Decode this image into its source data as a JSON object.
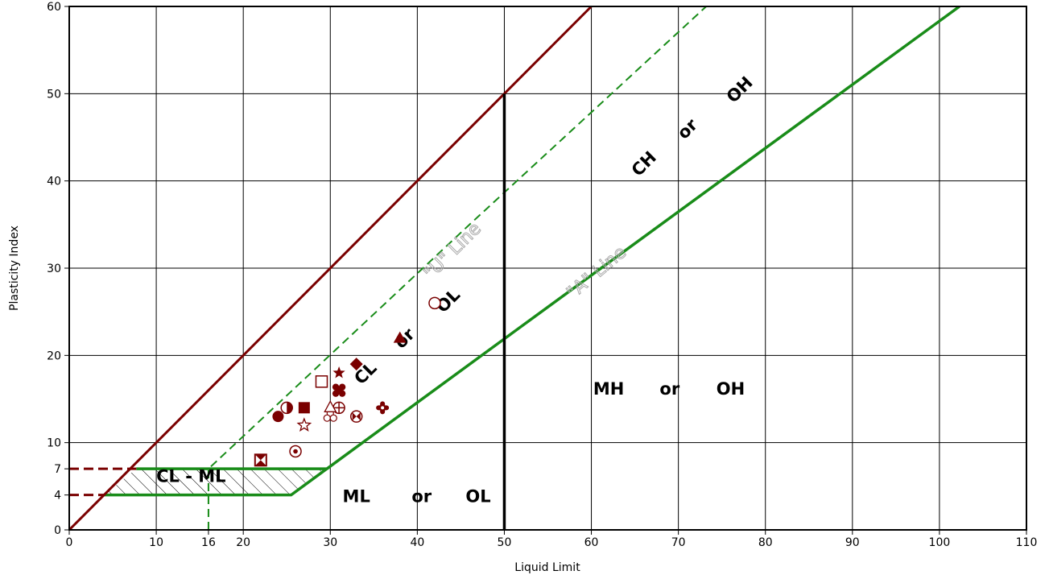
{
  "colors": {
    "u_line": "#7a0000",
    "a_line": "#198c19",
    "marker": "#7a0000",
    "grid": "#000000"
  },
  "chart_data": {
    "type": "scatter",
    "title": "",
    "xlabel": "Liquid Limit",
    "ylabel": "Plasticity Index",
    "xlim": [
      0,
      110
    ],
    "ylim": [
      0,
      60
    ],
    "x_ticks": [
      0,
      10,
      16,
      20,
      30,
      40,
      50,
      60,
      70,
      80,
      90,
      100,
      110
    ],
    "y_ticks": [
      0,
      4,
      7,
      10,
      20,
      30,
      40,
      50,
      60
    ],
    "grid": true,
    "reference_lines": [
      {
        "name": "\"U\" Line",
        "points": [
          [
            0,
            0
          ],
          [
            8,
            7
          ],
          [
            60,
            60
          ]
        ]
      },
      {
        "name": "\"A\" Line",
        "points": [
          [
            4,
            4
          ],
          [
            25.5,
            4
          ],
          [
            29.6,
            7
          ],
          [
            50,
            21.9
          ],
          [
            102.3,
            60
          ]
        ]
      },
      {
        "name": "LL = 50",
        "points": [
          [
            50,
            0
          ],
          [
            50,
            50
          ]
        ]
      }
    ],
    "zones": [
      {
        "label": "CL - ML",
        "x": 14,
        "y": 5.5,
        "rotate": 0
      },
      {
        "label": "ML",
        "x": 33,
        "y": 3.2,
        "rotate": 0
      },
      {
        "label": "or",
        "x": 40.5,
        "y": 3.2,
        "rotate": 0
      },
      {
        "label": "OL",
        "x": 47,
        "y": 3.2,
        "rotate": 0
      },
      {
        "label": "MH",
        "x": 62,
        "y": 15.5,
        "rotate": 0
      },
      {
        "label": "or",
        "x": 69,
        "y": 15.5,
        "rotate": 0
      },
      {
        "label": "OH",
        "x": 76,
        "y": 15.5,
        "rotate": 0
      },
      {
        "label": "CL",
        "x": 34.5,
        "y": 17.5,
        "rotate": -45
      },
      {
        "label": "or",
        "x": 39,
        "y": 21.5,
        "rotate": -45
      },
      {
        "label": "OL",
        "x": 44,
        "y": 25.8,
        "rotate": -45
      },
      {
        "label": "CH",
        "x": 66.5,
        "y": 41.5,
        "rotate": -45
      },
      {
        "label": "or",
        "x": 71.5,
        "y": 45.5,
        "rotate": -45
      },
      {
        "label": "OH",
        "x": 77.5,
        "y": 50,
        "rotate": -45
      }
    ],
    "line_labels": [
      {
        "label": "\"U\" Line",
        "x": 44.5,
        "y": 31.5,
        "rotate": -45
      },
      {
        "label": "\"A\" Line",
        "x": 61,
        "y": 29,
        "rotate": -40
      }
    ],
    "points": [
      {
        "x": 24,
        "y": 13,
        "marker": "circle-filled"
      },
      {
        "x": 25,
        "y": 14,
        "marker": "circle-half"
      },
      {
        "x": 27,
        "y": 14,
        "marker": "square-filled"
      },
      {
        "x": 27,
        "y": 12,
        "marker": "star-outline"
      },
      {
        "x": 29,
        "y": 17,
        "marker": "square-open"
      },
      {
        "x": 31,
        "y": 18,
        "marker": "star-filled"
      },
      {
        "x": 31,
        "y": 16,
        "marker": "cross-filled"
      },
      {
        "x": 31,
        "y": 14,
        "marker": "circle-plus"
      },
      {
        "x": 30,
        "y": 13,
        "marker": "clover-open"
      },
      {
        "x": 30,
        "y": 14,
        "marker": "triangle-open"
      },
      {
        "x": 33,
        "y": 19,
        "marker": "diamond-filled"
      },
      {
        "x": 33,
        "y": 13,
        "marker": "circle-bowtie"
      },
      {
        "x": 36,
        "y": 14,
        "marker": "plus-round"
      },
      {
        "x": 38,
        "y": 22,
        "marker": "triangle-filled"
      },
      {
        "x": 42,
        "y": 26,
        "marker": "circle-open"
      },
      {
        "x": 26,
        "y": 9,
        "marker": "circle-dot"
      },
      {
        "x": 22,
        "y": 8,
        "marker": "square-hourglass"
      }
    ]
  }
}
